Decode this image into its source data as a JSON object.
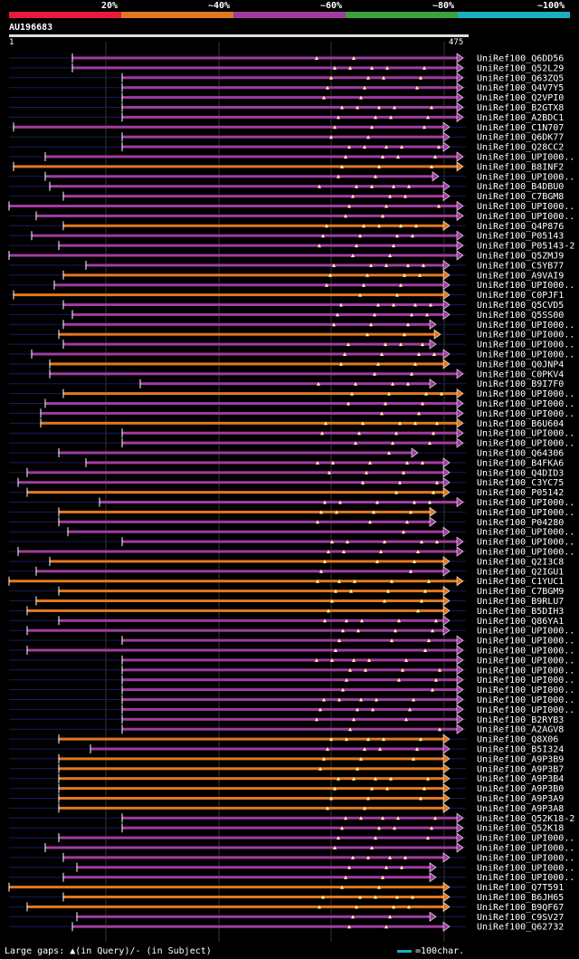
{
  "legend": {
    "labels": [
      "20%",
      "~40%",
      "~60%",
      "~80%",
      "~100%"
    ],
    "colors": [
      "#e8193c",
      "#e07820",
      "#a03ca0",
      "#3ca03c",
      "#1ab0c0"
    ]
  },
  "query": {
    "name": "AU196683",
    "start_label": "1",
    "end_label": "475",
    "length": 475
  },
  "footer": {
    "gaps_text": "Large gaps: ▲(in Query)/- (in Subject)",
    "scale_text": "=100char."
  },
  "chart_data": {
    "type": "alignment",
    "query_length": 475,
    "hits": [
      {
        "name": "UniRef100_Q6DD56",
        "start": 80,
        "end": 505,
        "color": "#a03ca0"
      },
      {
        "name": "UniRef100_Q52L29",
        "start": 80,
        "end": 505,
        "color": "#a03ca0"
      },
      {
        "name": "UniRef100_Q63ZQ5",
        "start": 135,
        "end": 505,
        "color": "#a03ca0"
      },
      {
        "name": "UniRef100_Q4V7Y5",
        "start": 135,
        "end": 505,
        "color": "#a03ca0"
      },
      {
        "name": "UniRef100_Q2VPI0",
        "start": 135,
        "end": 505,
        "color": "#a03ca0"
      },
      {
        "name": "UniRef100_B2GTX8",
        "start": 135,
        "end": 505,
        "color": "#a03ca0"
      },
      {
        "name": "UniRef100_A2BDC1",
        "start": 135,
        "end": 505,
        "color": "#a03ca0"
      },
      {
        "name": "UniRef100_C1N707",
        "start": 15,
        "end": 490,
        "color": "#a03ca0"
      },
      {
        "name": "UniRef100_Q6DK77",
        "start": 135,
        "end": 490,
        "color": "#a03ca0"
      },
      {
        "name": "UniRef100_Q28CC2",
        "start": 135,
        "end": 490,
        "color": "#a03ca0"
      },
      {
        "name": "UniRef100_UPI000..",
        "start": 50,
        "end": 505,
        "color": "#a03ca0"
      },
      {
        "name": "UniRef100_B8INF2",
        "start": 15,
        "end": 505,
        "color": "#e07820"
      },
      {
        "name": "UniRef100_UPI000..",
        "start": 50,
        "end": 478,
        "color": "#a03ca0"
      },
      {
        "name": "UniRef100_B4DBU0",
        "start": 55,
        "end": 490,
        "color": "#a03ca0"
      },
      {
        "name": "UniRef100_C7BGM8",
        "start": 70,
        "end": 490,
        "color": "#a03ca0"
      },
      {
        "name": "UniRef100_UPI000..",
        "start": 5,
        "end": 505,
        "color": "#a03ca0"
      },
      {
        "name": "UniRef100_UPI000..",
        "start": 40,
        "end": 505,
        "color": "#a03ca0"
      },
      {
        "name": "UniRef100_Q4P876",
        "start": 70,
        "end": 490,
        "color": "#e07820"
      },
      {
        "name": "UniRef100_P05143",
        "start": 35,
        "end": 505,
        "color": "#a03ca0"
      },
      {
        "name": "UniRef100_P05143-2",
        "start": 65,
        "end": 505,
        "color": "#a03ca0"
      },
      {
        "name": "UniRef100_Q5ZMJ9",
        "start": 5,
        "end": 505,
        "color": "#a03ca0"
      },
      {
        "name": "UniRef100_C5YB77",
        "start": 95,
        "end": 490,
        "color": "#a03ca0"
      },
      {
        "name": "UniRef100_A9VAI9",
        "start": 70,
        "end": 490,
        "color": "#e07820"
      },
      {
        "name": "UniRef100_UPI000..",
        "start": 60,
        "end": 490,
        "color": "#a03ca0"
      },
      {
        "name": "UniRef100_C0PJF1",
        "start": 15,
        "end": 490,
        "color": "#e07820"
      },
      {
        "name": "UniRef100_Q5CVD5",
        "start": 70,
        "end": 490,
        "color": "#a03ca0"
      },
      {
        "name": "UniRef100_Q5SS00",
        "start": 80,
        "end": 490,
        "color": "#a03ca0"
      },
      {
        "name": "UniRef100_UPI000..",
        "start": 70,
        "end": 475,
        "color": "#a03ca0"
      },
      {
        "name": "UniRef100_UPI000..",
        "start": 65,
        "end": 480,
        "color": "#e07820"
      },
      {
        "name": "UniRef100_UPI000..",
        "start": 70,
        "end": 475,
        "color": "#a03ca0"
      },
      {
        "name": "UniRef100_UPI000..",
        "start": 35,
        "end": 490,
        "color": "#a03ca0"
      },
      {
        "name": "UniRef100_Q0JNP4",
        "start": 55,
        "end": 490,
        "color": "#e07820"
      },
      {
        "name": "UniRef100_C0PKV4",
        "start": 55,
        "end": 505,
        "color": "#a03ca0"
      },
      {
        "name": "UniRef100_B9I7F0",
        "start": 155,
        "end": 475,
        "color": "#a03ca0"
      },
      {
        "name": "UniRef100_UPI000..",
        "start": 70,
        "end": 505,
        "color": "#e07820"
      },
      {
        "name": "UniRef100_UPI000..",
        "start": 50,
        "end": 505,
        "color": "#a03ca0"
      },
      {
        "name": "UniRef100_UPI000..",
        "start": 45,
        "end": 505,
        "color": "#a03ca0"
      },
      {
        "name": "UniRef100_B6U604",
        "start": 45,
        "end": 505,
        "color": "#e07820"
      },
      {
        "name": "UniRef100_UPI000..",
        "start": 135,
        "end": 505,
        "color": "#a03ca0"
      },
      {
        "name": "UniRef100_UPI000..",
        "start": 135,
        "end": 505,
        "color": "#a03ca0"
      },
      {
        "name": "UniRef100_Q64306",
        "start": 65,
        "end": 455,
        "color": "#a03ca0"
      },
      {
        "name": "UniRef100_B4FKA6",
        "start": 95,
        "end": 490,
        "color": "#a03ca0"
      },
      {
        "name": "UniRef100_Q4DID3",
        "start": 30,
        "end": 490,
        "color": "#a03ca0"
      },
      {
        "name": "UniRef100_C3YC75",
        "start": 20,
        "end": 490,
        "color": "#a03ca0"
      },
      {
        "name": "UniRef100_P05142",
        "start": 30,
        "end": 490,
        "color": "#e07820"
      },
      {
        "name": "UniRef100_UPI000..",
        "start": 110,
        "end": 505,
        "color": "#a03ca0"
      },
      {
        "name": "UniRef100_UPI000..",
        "start": 65,
        "end": 475,
        "color": "#e07820"
      },
      {
        "name": "UniRef100_P04280",
        "start": 65,
        "end": 475,
        "color": "#a03ca0"
      },
      {
        "name": "UniRef100_UPI000..",
        "start": 75,
        "end": 490,
        "color": "#a03ca0"
      },
      {
        "name": "UniRef100_UPI000..",
        "start": 135,
        "end": 505,
        "color": "#a03ca0"
      },
      {
        "name": "UniRef100_UPI000..",
        "start": 20,
        "end": 505,
        "color": "#a03ca0"
      },
      {
        "name": "UniRef100_Q2I3C8",
        "start": 55,
        "end": 490,
        "color": "#e07820"
      },
      {
        "name": "UniRef100_Q2IGU1",
        "start": 40,
        "end": 490,
        "color": "#a03ca0"
      },
      {
        "name": "UniRef100_C1YUC1",
        "start": 5,
        "end": 505,
        "color": "#e07820"
      },
      {
        "name": "UniRef100_C7BGM9",
        "start": 65,
        "end": 490,
        "color": "#e07820"
      },
      {
        "name": "UniRef100_B9RLU7",
        "start": 40,
        "end": 490,
        "color": "#e07820"
      },
      {
        "name": "UniRef100_B5DIH3",
        "start": 30,
        "end": 490,
        "color": "#e07820"
      },
      {
        "name": "UniRef100_Q86YA1",
        "start": 65,
        "end": 490,
        "color": "#a03ca0"
      },
      {
        "name": "UniRef100_UPI000..",
        "start": 30,
        "end": 490,
        "color": "#a03ca0"
      },
      {
        "name": "UniRef100_UPI000..",
        "start": 135,
        "end": 505,
        "color": "#a03ca0"
      },
      {
        "name": "UniRef100_UPI000..",
        "start": 30,
        "end": 505,
        "color": "#a03ca0"
      },
      {
        "name": "UniRef100_UPI000..",
        "start": 135,
        "end": 505,
        "color": "#a03ca0"
      },
      {
        "name": "UniRef100_UPI000..",
        "start": 135,
        "end": 505,
        "color": "#a03ca0"
      },
      {
        "name": "UniRef100_UPI000..",
        "start": 135,
        "end": 505,
        "color": "#a03ca0"
      },
      {
        "name": "UniRef100_UPI000..",
        "start": 135,
        "end": 505,
        "color": "#a03ca0"
      },
      {
        "name": "UniRef100_UPI000..",
        "start": 135,
        "end": 505,
        "color": "#a03ca0"
      },
      {
        "name": "UniRef100_UPI000..",
        "start": 135,
        "end": 505,
        "color": "#a03ca0"
      },
      {
        "name": "UniRef100_B2RYB3",
        "start": 135,
        "end": 505,
        "color": "#a03ca0"
      },
      {
        "name": "UniRef100_A2AGV8",
        "start": 135,
        "end": 505,
        "color": "#a03ca0"
      },
      {
        "name": "UniRef100_Q8X06",
        "start": 65,
        "end": 490,
        "color": "#e07820"
      },
      {
        "name": "UniRef100_B5I324",
        "start": 100,
        "end": 490,
        "color": "#a03ca0"
      },
      {
        "name": "UniRef100_A9P3B9",
        "start": 65,
        "end": 490,
        "color": "#e07820"
      },
      {
        "name": "UniRef100_A9P3B7",
        "start": 65,
        "end": 490,
        "color": "#e07820"
      },
      {
        "name": "UniRef100_A9P3B4",
        "start": 65,
        "end": 490,
        "color": "#e07820"
      },
      {
        "name": "UniRef100_A9P3B0",
        "start": 65,
        "end": 490,
        "color": "#e07820"
      },
      {
        "name": "UniRef100_A9P3A9",
        "start": 65,
        "end": 490,
        "color": "#e07820"
      },
      {
        "name": "UniRef100_A9P3A8",
        "start": 65,
        "end": 490,
        "color": "#e07820"
      },
      {
        "name": "UniRef100_Q52K18-2",
        "start": 135,
        "end": 505,
        "color": "#a03ca0"
      },
      {
        "name": "UniRef100_Q52K18",
        "start": 135,
        "end": 505,
        "color": "#a03ca0"
      },
      {
        "name": "UniRef100_UPI000..",
        "start": 65,
        "end": 505,
        "color": "#a03ca0"
      },
      {
        "name": "UniRef100_UPI000..",
        "start": 50,
        "end": 505,
        "color": "#a03ca0"
      },
      {
        "name": "UniRef100_UPI000..",
        "start": 70,
        "end": 490,
        "color": "#a03ca0"
      },
      {
        "name": "UniRef100_UPI000..",
        "start": 85,
        "end": 475,
        "color": "#a03ca0"
      },
      {
        "name": "UniRef100_UPI000..",
        "start": 70,
        "end": 475,
        "color": "#a03ca0"
      },
      {
        "name": "UniRef100_Q7T591",
        "start": 5,
        "end": 490,
        "color": "#e07820"
      },
      {
        "name": "UniRef100_B6JH65",
        "start": 70,
        "end": 490,
        "color": "#e07820"
      },
      {
        "name": "UniRef100_B9QF67",
        "start": 30,
        "end": 490,
        "color": "#e07820"
      },
      {
        "name": "UniRef100_C9SV27",
        "start": 85,
        "end": 475,
        "color": "#a03ca0"
      },
      {
        "name": "UniRef100_Q62732",
        "start": 80,
        "end": 490,
        "color": "#a03ca0"
      }
    ]
  }
}
